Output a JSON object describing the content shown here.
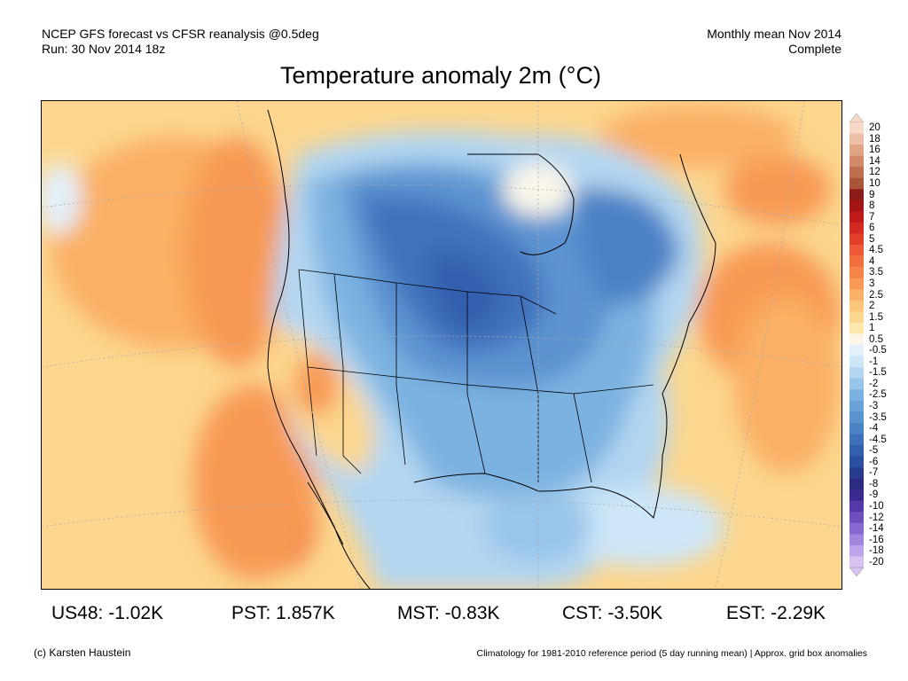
{
  "header": {
    "line1": "NCEP GFS forecast vs CFSR reanalysis @0.5deg",
    "line2": "Run: 30 Nov 2014 18z",
    "right1": "Monthly mean Nov 2014",
    "right2": "Complete"
  },
  "title": "Temperature anomaly 2m (°C)",
  "colorbar": {
    "labels": [
      "20",
      "18",
      "16",
      "14",
      "12",
      "10",
      "9",
      "8",
      "7",
      "6",
      "5",
      "4.5",
      "4",
      "3.5",
      "3",
      "2.5",
      "2",
      "1.5",
      "1",
      "0.5",
      "-0.5",
      "-1",
      "-1.5",
      "-2",
      "-2.5",
      "-3",
      "-3.5",
      "-4",
      "-4.5",
      "-5",
      "-6",
      "-7",
      "-8",
      "-9",
      "-10",
      "-12",
      "-14",
      "-16",
      "-18",
      "-20"
    ],
    "colors": [
      "#f7d9c9",
      "#edbfa6",
      "#e0a587",
      "#d08a6a",
      "#bf6f4e",
      "#a95538",
      "#8c1a1a",
      "#a51515",
      "#bf1b1b",
      "#d42a22",
      "#e3402c",
      "#ee5a37",
      "#f26f3d",
      "#f58447",
      "#f89a55",
      "#fab065",
      "#fbc57a",
      "#fcd68e",
      "#fde7ad",
      "#fbf6e9",
      "#e3f0fb",
      "#cde6f8",
      "#b3d6f1",
      "#98c5ea",
      "#7cb2e1",
      "#6aa2d8",
      "#5b93d0",
      "#4c82c6",
      "#3f71bb",
      "#3360ae",
      "#2b4e9f",
      "#283c8f",
      "#2c2b80",
      "#3a2a8f",
      "#5539a8",
      "#6e4fbe",
      "#8868d0",
      "#a384de",
      "#bea3ea",
      "#d8c4f3"
    ]
  },
  "stats": [
    {
      "label": "US48: -1.02K"
    },
    {
      "label": "PST: 1.857K"
    },
    {
      "label": "MST: -0.83K"
    },
    {
      "label": "CST: -3.50K"
    },
    {
      "label": "EST: -2.29K"
    }
  ],
  "footer": {
    "left": "(c) Karsten Haustein",
    "right": "Climatology for 1981-2010 reference period (5 day running mean) | Approx. grid box anomalies"
  }
}
